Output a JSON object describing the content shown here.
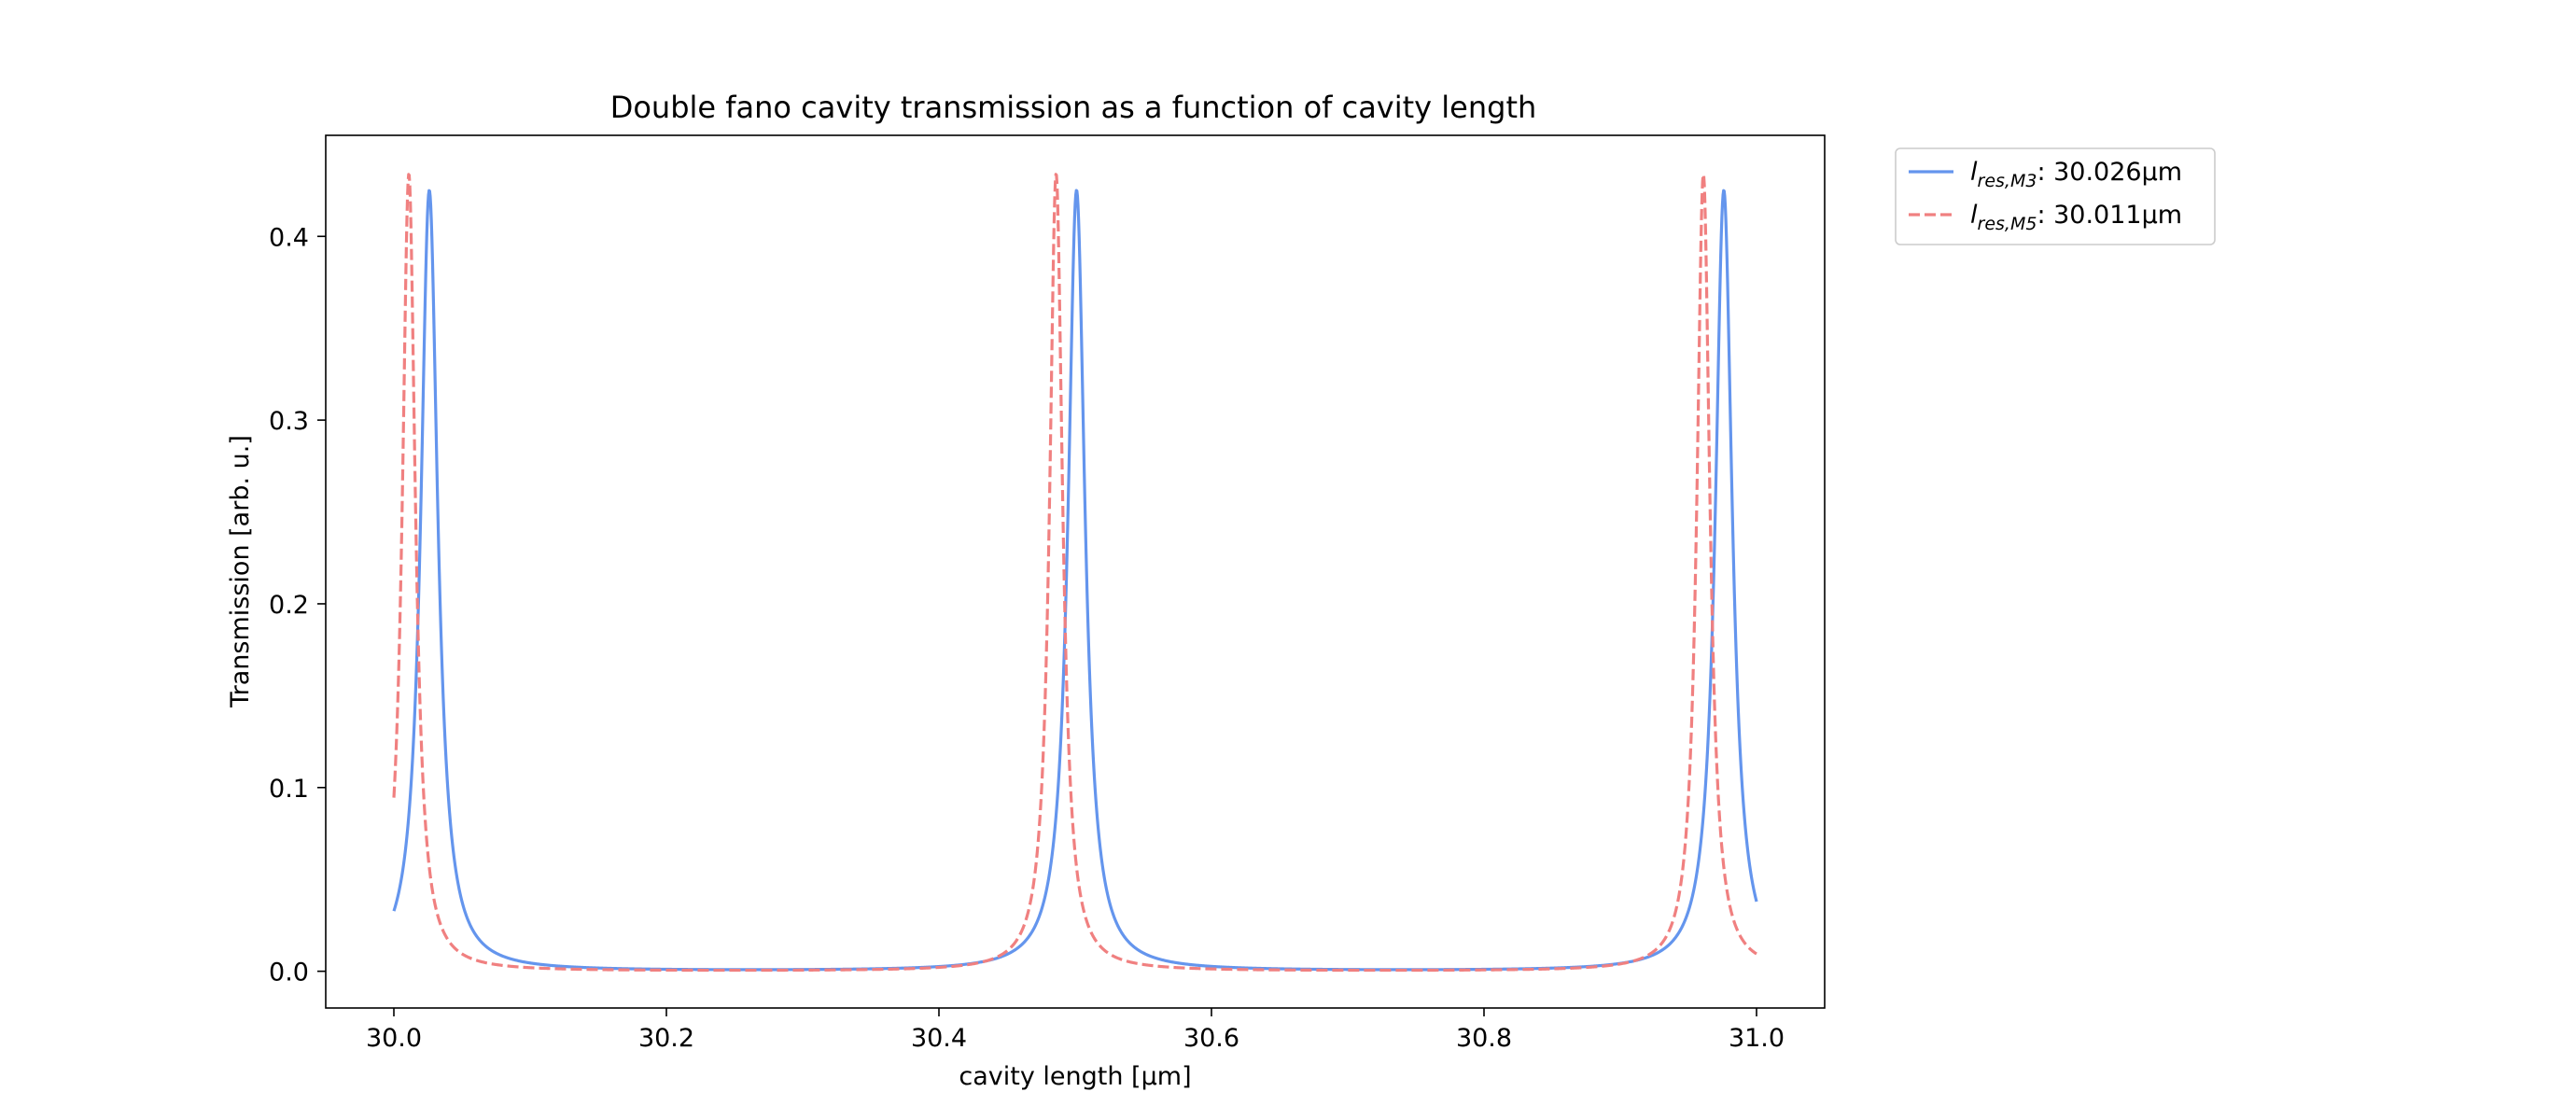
{
  "chart_data": {
    "type": "line",
    "title": "Double fano cavity transmission as a function of cavity length",
    "xlabel": "cavity length [µm]",
    "ylabel": "Transmission [arb. u.]",
    "xlim": [
      29.95,
      31.05
    ],
    "ylim": [
      -0.02,
      0.455
    ],
    "x_ticks": [
      30.0,
      30.2,
      30.4,
      30.6,
      30.8,
      31.0
    ],
    "x_tick_labels": [
      "30.0",
      "30.2",
      "30.4",
      "30.6",
      "30.8",
      "31.0"
    ],
    "y_ticks": [
      0.0,
      0.1,
      0.2,
      0.3,
      0.4
    ],
    "y_tick_labels": [
      "0.0",
      "0.1",
      "0.2",
      "0.3",
      "0.4"
    ],
    "grid": false,
    "legend_position": "outside upper right",
    "x_range": [
      30.0,
      31.0
    ],
    "series": [
      {
        "name": "l_res,M3: 30.026µm",
        "legend_main": "l",
        "legend_sub": "res,M3",
        "legend_value": ": 30.026µm",
        "color": "#6495ED",
        "linestyle": "solid",
        "peaks": [
          30.026,
          30.501,
          30.976
        ],
        "peak_value": 0.425,
        "peak_halfwidth": 0.0075,
        "start_value": 0.031,
        "end_value": 0.041
      },
      {
        "name": "l_res,M5: 30.011µm",
        "legend_main": "l",
        "legend_sub": "res,M5",
        "legend_value": ": 30.011µm",
        "color": "#F08080",
        "linestyle": "dashed",
        "peaks": [
          30.011,
          30.486,
          30.961
        ],
        "peak_value": 0.434,
        "peak_halfwidth": 0.0058,
        "start_value": 0.114,
        "end_value": 0.014
      }
    ]
  }
}
